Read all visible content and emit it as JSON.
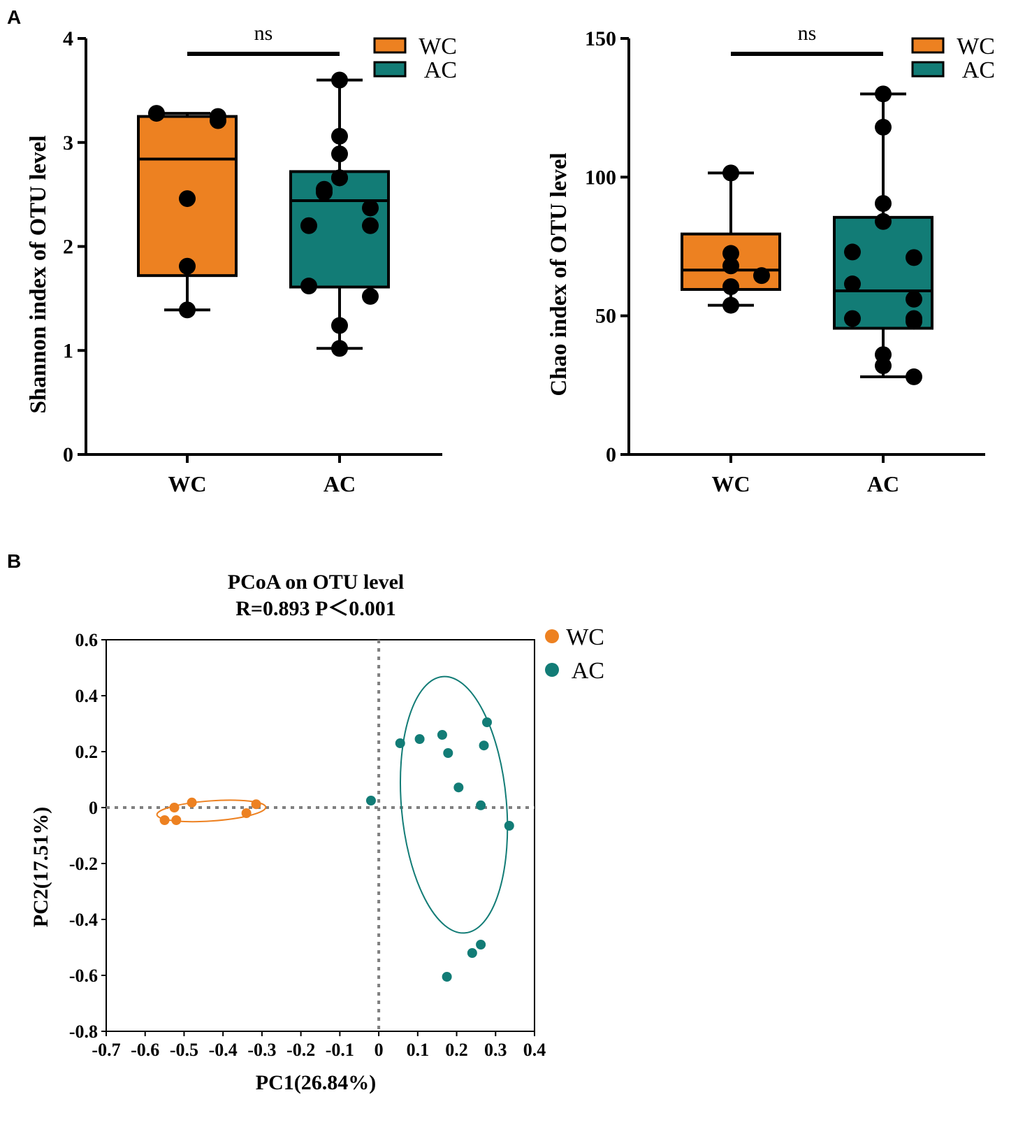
{
  "panel_labels": {
    "a": "A",
    "b": "B"
  },
  "colors": {
    "wc": "#ED8121",
    "ac": "#127C76",
    "ink": "#000000",
    "dash": "#808080"
  },
  "chart_data": [
    {
      "id": "shannon",
      "type": "box",
      "ylabel": "Shannon index of OTU level",
      "ylim": [
        0,
        4
      ],
      "yticks": [
        "0",
        "1",
        "2",
        "3",
        "4"
      ],
      "categories": [
        "WC",
        "AC"
      ],
      "significance": "ns",
      "legend": [
        "WC",
        "AC"
      ],
      "groups": [
        {
          "name": "WC",
          "min": 1.39,
          "q1": 1.72,
          "median": 2.84,
          "q3": 3.25,
          "max": 3.28,
          "points": [
            3.28,
            3.25,
            3.21,
            2.46,
            1.81,
            1.39
          ]
        },
        {
          "name": "AC",
          "min": 1.02,
          "q1": 1.61,
          "median": 2.44,
          "q3": 2.72,
          "max": 3.6,
          "points": [
            3.6,
            3.06,
            2.89,
            2.66,
            2.66,
            2.55,
            2.52,
            2.37,
            2.2,
            2.2,
            1.62,
            1.52,
            1.24,
            1.02
          ]
        }
      ]
    },
    {
      "id": "chao",
      "type": "box",
      "ylabel": "Chao index of OTU level",
      "ylim": [
        0,
        150
      ],
      "yticks": [
        "0",
        "50",
        "100",
        "150"
      ],
      "categories": [
        "WC",
        "AC"
      ],
      "significance": "ns",
      "legend": [
        "WC",
        "AC"
      ],
      "groups": [
        {
          "name": "WC",
          "min": 53.8,
          "q1": 59.5,
          "median": 66.5,
          "q3": 79.5,
          "max": 101.5,
          "points": [
            101.5,
            72.5,
            68,
            64.5,
            60.5,
            53.8
          ]
        },
        {
          "name": "AC",
          "min": 28,
          "q1": 45.5,
          "median": 59,
          "q3": 85.5,
          "max": 130,
          "points": [
            130,
            118,
            90.5,
            84,
            73,
            71,
            61.5,
            56,
            49,
            49,
            48,
            36,
            32,
            28
          ]
        }
      ]
    },
    {
      "id": "pcoa",
      "type": "scatter",
      "title": "PCoA on OTU level",
      "subtitle": "R=0.893 P＜0.001",
      "xlabel": "PC1(26.84%)",
      "ylabel": "PC2(17.51%)",
      "xlim": [
        -0.7,
        0.4
      ],
      "ylim": [
        -0.8,
        0.6
      ],
      "xticks": [
        "-0.7",
        "-0.6",
        "-0.5",
        "-0.4",
        "-0.3",
        "-0.2",
        "-0.1",
        "0",
        "0.1",
        "0.2",
        "0.3",
        "0.4"
      ],
      "yticks": [
        "0.6",
        "0.4",
        "0.2",
        "0",
        "-0.2",
        "-0.4",
        "-0.6",
        "-0.8"
      ],
      "legend": [
        "WC",
        "AC"
      ],
      "series": [
        {
          "name": "WC",
          "points": [
            [
              -0.55,
              -0.045
            ],
            [
              -0.525,
              0.0
            ],
            [
              -0.52,
              -0.045
            ],
            [
              -0.48,
              0.018
            ],
            [
              -0.34,
              -0.02
            ],
            [
              -0.315,
              0.012
            ]
          ],
          "ellipse": {
            "cx": -0.43,
            "cy": -0.012,
            "rx": 0.14,
            "ry": 0.036,
            "angle_deg": -4
          }
        },
        {
          "name": "AC",
          "points": [
            [
              -0.02,
              0.025
            ],
            [
              0.055,
              0.23
            ],
            [
              0.105,
              0.245
            ],
            [
              0.163,
              0.26
            ],
            [
              0.178,
              0.195
            ],
            [
              0.278,
              0.305
            ],
            [
              0.27,
              0.222
            ],
            [
              0.205,
              0.072
            ],
            [
              0.262,
              0.008
            ],
            [
              0.335,
              -0.065
            ],
            [
              0.262,
              -0.49
            ],
            [
              0.24,
              -0.52
            ],
            [
              0.175,
              -0.605
            ]
          ],
          "ellipse": {
            "cx": 0.193,
            "cy": 0.01,
            "rx": 0.135,
            "ry": 0.46,
            "angle_deg": -5
          }
        }
      ]
    }
  ]
}
